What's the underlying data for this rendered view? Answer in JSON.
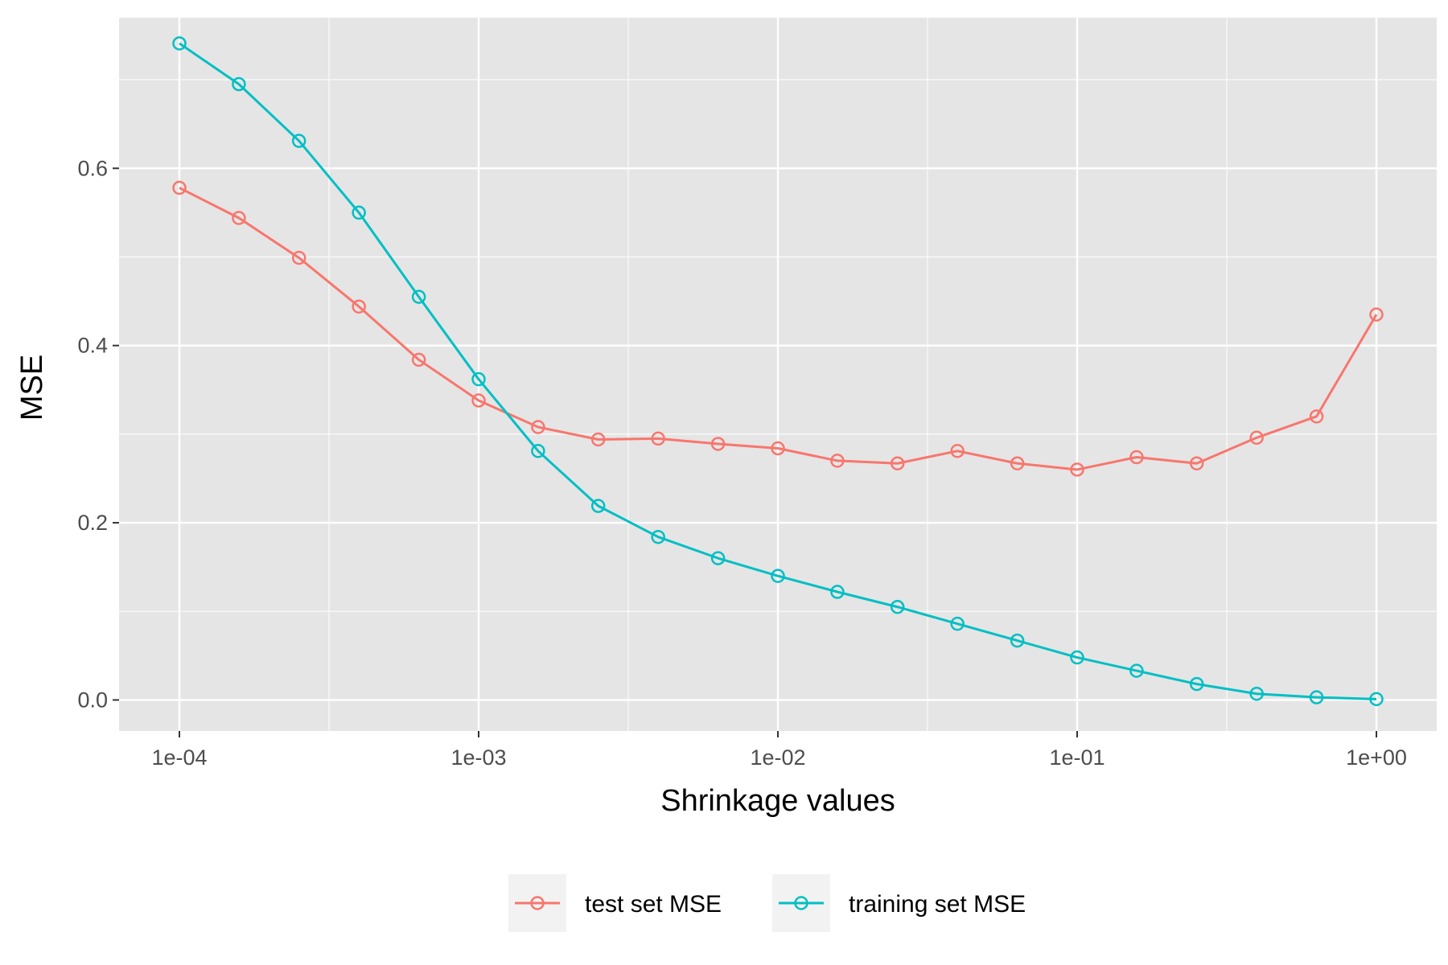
{
  "chart_data": {
    "type": "line",
    "title": "",
    "xlabel": "Shrinkage values",
    "ylabel": "MSE",
    "x_scale": "log10",
    "xlim": [
      0.0001,
      1
    ],
    "ylim": [
      -0.035,
      0.77
    ],
    "x_ticks": [
      0.0001,
      0.001,
      0.01,
      0.1,
      1
    ],
    "x_tick_labels": [
      "1e-04",
      "1e-03",
      "1e-02",
      "1e-01",
      "1e+00"
    ],
    "y_ticks": [
      0.0,
      0.2,
      0.4,
      0.6
    ],
    "y_tick_labels": [
      "0.0",
      "0.2",
      "0.4",
      "0.6"
    ],
    "grid": true,
    "legend_position": "bottom",
    "x": [
      0.0001,
      0.000158,
      0.000251,
      0.000398,
      0.000631,
      0.001,
      0.00158,
      0.00251,
      0.00398,
      0.00631,
      0.01,
      0.0158,
      0.0251,
      0.0398,
      0.0631,
      0.1,
      0.158,
      0.251,
      0.398,
      0.631,
      1.0
    ],
    "series": [
      {
        "name": "test set MSE",
        "color": "#F8766D",
        "values": [
          0.578,
          0.544,
          0.499,
          0.444,
          0.384,
          0.338,
          0.308,
          0.294,
          0.295,
          0.289,
          0.284,
          0.27,
          0.267,
          0.281,
          0.267,
          0.26,
          0.274,
          0.267,
          0.296,
          0.32,
          0.435
        ]
      },
      {
        "name": "training set MSE",
        "color": "#00BFC4",
        "values": [
          0.741,
          0.695,
          0.631,
          0.55,
          0.455,
          0.362,
          0.281,
          0.219,
          0.184,
          0.16,
          0.14,
          0.122,
          0.105,
          0.086,
          0.067,
          0.048,
          0.033,
          0.018,
          0.007,
          0.003,
          0.001
        ]
      }
    ]
  },
  "colors": {
    "panel_background": "#E5E5E5",
    "grid": "#FFFFFF",
    "test_series": "#F8766D",
    "train_series": "#00BFC4"
  }
}
